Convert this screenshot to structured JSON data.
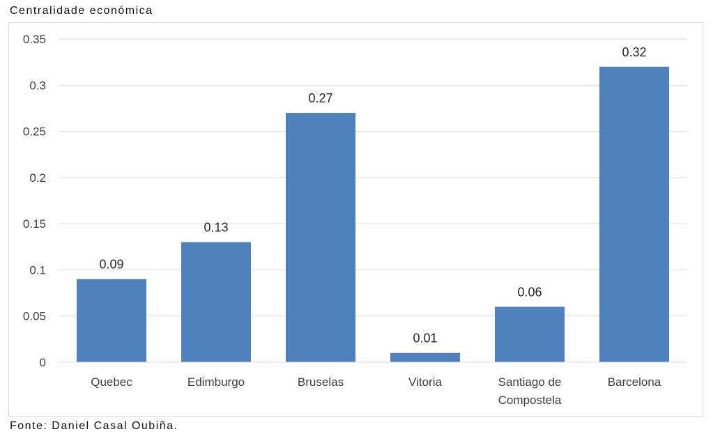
{
  "chart_data": {
    "type": "bar",
    "title": "Centralidade económica",
    "categories": [
      "Quebec",
      "Edimburgo",
      "Bruselas",
      "Vitoria",
      "Santiago de Compostela",
      "Barcelona"
    ],
    "category_lines": [
      [
        "Quebec"
      ],
      [
        "Edimburgo"
      ],
      [
        "Bruselas"
      ],
      [
        "Vitoria"
      ],
      [
        "Santiago de",
        "Compostela"
      ],
      [
        "Barcelona"
      ]
    ],
    "values": [
      0.09,
      0.13,
      0.27,
      0.01,
      0.06,
      0.32
    ],
    "data_labels": [
      "0.09",
      "0.13",
      "0.27",
      "0.01",
      "0.06",
      "0.32"
    ],
    "yticks": [
      0,
      0.05,
      0.1,
      0.15,
      0.2,
      0.25,
      0.3,
      0.35
    ],
    "ytick_labels": [
      "0",
      "0.05",
      "0.1",
      "0.15",
      "0.2",
      "0.25",
      "0.3",
      "0.35"
    ],
    "ylim": [
      0,
      0.35
    ],
    "grid": true,
    "bar_color": "#4f81bd",
    "grid_color": "#d9d9d9"
  },
  "source": "Fonte: Daniel Casal Oubiña."
}
